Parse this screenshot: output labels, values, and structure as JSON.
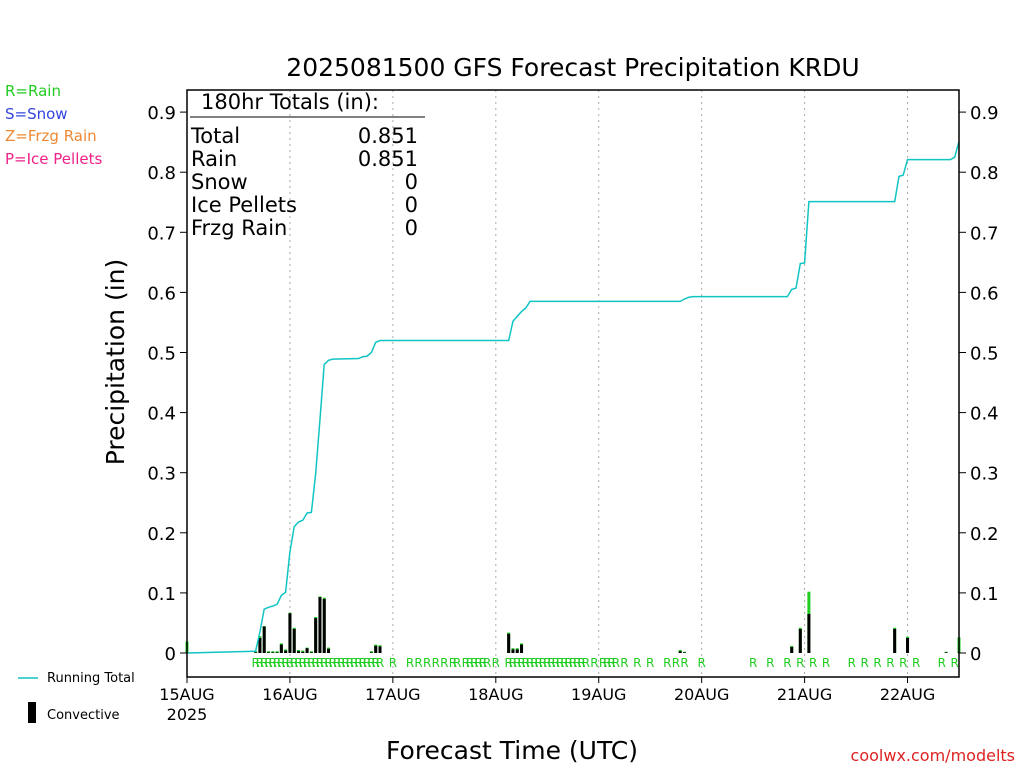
{
  "legend": {
    "left": [
      {
        "label": "R=Rain",
        "color": "#22cc22"
      },
      {
        "label": "S=Snow",
        "color": "#3344dd"
      },
      {
        "label": "Z=Frzg Rain",
        "color": "#ee8833"
      },
      {
        "label": "P=Ice Pellets",
        "color": "#ee2288"
      }
    ],
    "running_total": "Running Total",
    "convective": "Convective"
  },
  "totals": {
    "heading": "180hr Totals (in):",
    "rows": [
      {
        "label": "Total",
        "value": "0.851"
      },
      {
        "label": "Rain",
        "value": "0.851"
      },
      {
        "label": "Snow",
        "value": "0"
      },
      {
        "label": "Ice Pellets",
        "value": "0"
      },
      {
        "label": "Frzg Rain",
        "value": "0"
      }
    ]
  },
  "footer": {
    "credit": "coolwx.com/modelts"
  },
  "colors": {
    "running_total": "#11c4c4",
    "rain_bar": "#22cc22",
    "convective_bar": "#000000",
    "credit": "#dd2222"
  },
  "chart_data": {
    "type": "bar",
    "title": "2025081500 GFS Forecast Precipitation KRDU",
    "xlabel": "Forecast Time (UTC)",
    "ylabel": "Precipitation (in)",
    "ylim": [
      0,
      0.93
    ],
    "xlim_hours": [
      0,
      180
    ],
    "y_ticks": [
      0,
      0.1,
      0.2,
      0.3,
      0.4,
      0.5,
      0.6,
      0.7,
      0.8,
      0.9
    ],
    "y_tick_labels": [
      "0",
      "0.1",
      "0.2",
      "0.3",
      "0.4",
      "0.5",
      "0.6",
      "0.7",
      "0.8",
      "0.9"
    ],
    "x_ticks": [
      {
        "hour": 0,
        "label": "15AUG",
        "sublabel": "2025"
      },
      {
        "hour": 24,
        "label": "16AUG"
      },
      {
        "hour": 48,
        "label": "17AUG"
      },
      {
        "hour": 72,
        "label": "18AUG"
      },
      {
        "hour": 96,
        "label": "19AUG"
      },
      {
        "hour": 120,
        "label": "20AUG"
      },
      {
        "hour": 144,
        "label": "21AUG"
      },
      {
        "hour": 168,
        "label": "22AUG"
      }
    ],
    "running_total": {
      "name": "Running Total",
      "hours": [
        0,
        16,
        17,
        18,
        19,
        20,
        21,
        22,
        23,
        24,
        25,
        26,
        27,
        28,
        29,
        30,
        31,
        32,
        33,
        34,
        40,
        41,
        42,
        43,
        44,
        45,
        75,
        76,
        77,
        78,
        79,
        80,
        115,
        116,
        117,
        118,
        140,
        141,
        142,
        143,
        144,
        145,
        146,
        147,
        165,
        166,
        167,
        168,
        178,
        179,
        180
      ],
      "values": [
        0,
        0.003,
        0.035,
        0.073,
        0.076,
        0.078,
        0.081,
        0.096,
        0.101,
        0.168,
        0.21,
        0.218,
        0.221,
        0.233,
        0.234,
        0.299,
        0.389,
        0.48,
        0.487,
        0.489,
        0.49,
        0.493,
        0.494,
        0.5,
        0.517,
        0.52,
        0.52,
        0.552,
        0.56,
        0.568,
        0.574,
        0.585,
        0.585,
        0.589,
        0.592,
        0.593,
        0.593,
        0.605,
        0.607,
        0.648,
        0.649,
        0.751,
        0.751,
        0.751,
        0.751,
        0.793,
        0.795,
        0.821,
        0.821,
        0.825,
        0.851
      ]
    },
    "bars": {
      "hours": [
        0,
        16,
        17,
        18,
        19,
        20,
        21,
        22,
        23,
        24,
        25,
        26,
        27,
        28,
        29,
        30,
        31,
        32,
        33,
        43,
        44,
        45,
        75,
        76,
        77,
        78,
        115,
        116,
        141,
        143,
        145,
        165,
        168,
        177,
        180
      ],
      "total": [
        0.019,
        0.003,
        0.028,
        0.045,
        0.003,
        0.003,
        0.003,
        0.016,
        0.006,
        0.067,
        0.042,
        0.005,
        0.004,
        0.009,
        0.003,
        0.06,
        0.094,
        0.092,
        0.009,
        0.003,
        0.014,
        0.013,
        0.034,
        0.008,
        0.008,
        0.016,
        0.005,
        0.002,
        0.012,
        0.042,
        0.102,
        0.042,
        0.027,
        0.002,
        0.026
      ],
      "convective": [
        0.001,
        0.001,
        0.025,
        0.044,
        0.001,
        0.001,
        0.001,
        0.014,
        0.004,
        0.066,
        0.04,
        0.003,
        0.002,
        0.008,
        0.001,
        0.058,
        0.093,
        0.09,
        0.007,
        0.001,
        0.012,
        0.011,
        0.032,
        0.006,
        0.006,
        0.014,
        0.003,
        0.001,
        0.01,
        0.04,
        0.065,
        0.04,
        0.025,
        0.001,
        0.001
      ]
    },
    "precip_type_markers": {
      "label": "R",
      "hours": [
        16,
        17,
        18,
        19,
        20,
        21,
        22,
        23,
        24,
        25,
        26,
        27,
        28,
        29,
        30,
        31,
        32,
        33,
        34,
        35,
        36,
        37,
        38,
        39,
        40,
        41,
        42,
        43,
        44,
        45,
        48,
        52,
        54,
        56,
        58,
        60,
        62,
        63,
        65,
        66,
        67,
        68,
        69,
        70,
        72,
        75,
        76,
        77,
        78,
        79,
        80,
        81,
        82,
        83,
        84,
        85,
        86,
        87,
        88,
        89,
        90,
        91,
        92,
        93,
        95,
        97,
        98,
        99,
        100,
        102,
        105,
        108,
        112,
        114,
        116,
        120,
        132,
        136,
        140,
        143,
        146,
        149,
        155,
        158,
        161,
        164,
        167,
        170,
        176,
        179
      ]
    }
  }
}
